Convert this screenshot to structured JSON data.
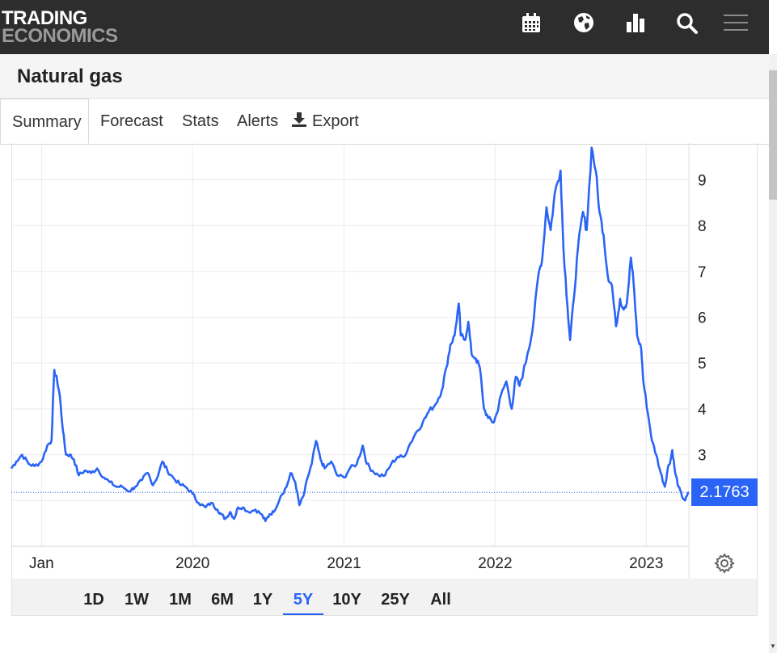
{
  "header": {
    "logo_line1": "TRADING",
    "logo_line2": "ECONOMICS",
    "icons": [
      "calendar-icon",
      "globe-icon",
      "bar-chart-icon",
      "search-icon",
      "menu-icon"
    ]
  },
  "page": {
    "title": "Natural gas"
  },
  "tabs": [
    {
      "label": "Summary",
      "active": true
    },
    {
      "label": "Forecast"
    },
    {
      "label": "Stats"
    },
    {
      "label": "Alerts"
    },
    {
      "label": "Export",
      "icon": "download-icon"
    }
  ],
  "ranges": [
    {
      "label": "1D"
    },
    {
      "label": "1W"
    },
    {
      "label": "1M"
    },
    {
      "label": "6M"
    },
    {
      "label": "1Y"
    },
    {
      "label": "5Y",
      "active": true
    },
    {
      "label": "10Y"
    },
    {
      "label": "25Y"
    },
    {
      "label": "All"
    }
  ],
  "colors": {
    "line": "#2a64f6",
    "header_bg": "#2d2d2d",
    "accent": "#2a64f6"
  },
  "chart_data": {
    "type": "line",
    "current_value": "2.1763",
    "x_tick_labels": [
      "Jan",
      "2020",
      "2021",
      "2022",
      "2023"
    ],
    "y_ticks": [
      3,
      4,
      5,
      6,
      7,
      8,
      9
    ],
    "ylim": [
      1.0,
      9.8
    ],
    "xlim": [
      "2018-10-20",
      "2023-04-14"
    ],
    "grid": true,
    "series": [
      {
        "values": [
          [
            "2018-10-20",
            2.7
          ],
          [
            "2018-11-01",
            2.85
          ],
          [
            "2018-11-15",
            3.0
          ],
          [
            "2018-12-01",
            2.8
          ],
          [
            "2018-12-15",
            2.75
          ],
          [
            "2019-01-01",
            2.85
          ],
          [
            "2019-01-15",
            3.2
          ],
          [
            "2019-01-25",
            3.3
          ],
          [
            "2019-02-01",
            4.85
          ],
          [
            "2019-02-08",
            4.6
          ],
          [
            "2019-02-14",
            4.3
          ],
          [
            "2019-02-22",
            3.5
          ],
          [
            "2019-03-01",
            3.0
          ],
          [
            "2019-03-10",
            3.0
          ],
          [
            "2019-03-20",
            2.9
          ],
          [
            "2019-04-01",
            2.55
          ],
          [
            "2019-04-15",
            2.65
          ],
          [
            "2019-05-01",
            2.6
          ],
          [
            "2019-05-15",
            2.7
          ],
          [
            "2019-06-01",
            2.5
          ],
          [
            "2019-06-15",
            2.4
          ],
          [
            "2019-07-01",
            2.3
          ],
          [
            "2019-07-15",
            2.3
          ],
          [
            "2019-08-01",
            2.2
          ],
          [
            "2019-08-15",
            2.3
          ],
          [
            "2019-09-01",
            2.45
          ],
          [
            "2019-09-15",
            2.6
          ],
          [
            "2019-09-25",
            2.35
          ],
          [
            "2019-10-05",
            2.45
          ],
          [
            "2019-10-20",
            2.85
          ],
          [
            "2019-11-01",
            2.65
          ],
          [
            "2019-11-15",
            2.5
          ],
          [
            "2019-12-01",
            2.35
          ],
          [
            "2019-12-15",
            2.3
          ],
          [
            "2020-01-01",
            2.15
          ],
          [
            "2020-01-15",
            1.95
          ],
          [
            "2020-02-01",
            1.85
          ],
          [
            "2020-02-15",
            1.95
          ],
          [
            "2020-03-01",
            1.8
          ],
          [
            "2020-03-10",
            1.7
          ],
          [
            "2020-03-20",
            1.6
          ],
          [
            "2020-04-01",
            1.75
          ],
          [
            "2020-04-10",
            1.6
          ],
          [
            "2020-04-20",
            1.85
          ],
          [
            "2020-05-01",
            1.85
          ],
          [
            "2020-05-15",
            1.75
          ],
          [
            "2020-06-01",
            1.8
          ],
          [
            "2020-06-15",
            1.7
          ],
          [
            "2020-06-25",
            1.55
          ],
          [
            "2020-07-05",
            1.7
          ],
          [
            "2020-07-15",
            1.75
          ],
          [
            "2020-08-01",
            2.1
          ],
          [
            "2020-08-15",
            2.3
          ],
          [
            "2020-08-25",
            2.6
          ],
          [
            "2020-09-05",
            2.4
          ],
          [
            "2020-09-15",
            1.9
          ],
          [
            "2020-09-25",
            2.1
          ],
          [
            "2020-10-05",
            2.5
          ],
          [
            "2020-10-15",
            2.8
          ],
          [
            "2020-10-25",
            3.3
          ],
          [
            "2020-11-05",
            2.9
          ],
          [
            "2020-11-15",
            2.7
          ],
          [
            "2020-12-01",
            2.85
          ],
          [
            "2020-12-15",
            2.55
          ],
          [
            "2021-01-01",
            2.5
          ],
          [
            "2021-01-15",
            2.7
          ],
          [
            "2021-02-01",
            2.8
          ],
          [
            "2021-02-15",
            3.2
          ],
          [
            "2021-02-25",
            2.8
          ],
          [
            "2021-03-10",
            2.65
          ],
          [
            "2021-03-25",
            2.55
          ],
          [
            "2021-04-10",
            2.55
          ],
          [
            "2021-04-25",
            2.8
          ],
          [
            "2021-05-10",
            2.95
          ],
          [
            "2021-05-25",
            2.95
          ],
          [
            "2021-06-10",
            3.25
          ],
          [
            "2021-06-25",
            3.5
          ],
          [
            "2021-07-10",
            3.7
          ],
          [
            "2021-07-25",
            3.95
          ],
          [
            "2021-08-10",
            4.1
          ],
          [
            "2021-08-25",
            4.4
          ],
          [
            "2021-09-05",
            4.9
          ],
          [
            "2021-09-15",
            5.4
          ],
          [
            "2021-09-25",
            5.6
          ],
          [
            "2021-10-05",
            6.3
          ],
          [
            "2021-10-10",
            5.6
          ],
          [
            "2021-10-20",
            5.5
          ],
          [
            "2021-10-28",
            5.9
          ],
          [
            "2021-11-05",
            5.2
          ],
          [
            "2021-11-15",
            5.1
          ],
          [
            "2021-11-25",
            4.9
          ],
          [
            "2021-12-05",
            4.0
          ],
          [
            "2021-12-15",
            3.8
          ],
          [
            "2021-12-28",
            3.7
          ],
          [
            "2022-01-05",
            3.9
          ],
          [
            "2022-01-15",
            4.3
          ],
          [
            "2022-01-28",
            4.6
          ],
          [
            "2022-02-10",
            4.0
          ],
          [
            "2022-02-20",
            4.7
          ],
          [
            "2022-03-01",
            4.5
          ],
          [
            "2022-03-10",
            4.8
          ],
          [
            "2022-03-20",
            5.2
          ],
          [
            "2022-04-01",
            5.7
          ],
          [
            "2022-04-15",
            6.9
          ],
          [
            "2022-04-25",
            7.3
          ],
          [
            "2022-05-05",
            8.4
          ],
          [
            "2022-05-15",
            7.9
          ],
          [
            "2022-05-25",
            8.7
          ],
          [
            "2022-06-08",
            9.2
          ],
          [
            "2022-06-15",
            7.5
          ],
          [
            "2022-06-25",
            6.2
          ],
          [
            "2022-07-01",
            5.5
          ],
          [
            "2022-07-10",
            6.4
          ],
          [
            "2022-07-20",
            7.5
          ],
          [
            "2022-08-01",
            8.3
          ],
          [
            "2022-08-10",
            7.9
          ],
          [
            "2022-08-22",
            9.7
          ],
          [
            "2022-09-01",
            9.2
          ],
          [
            "2022-09-10",
            8.3
          ],
          [
            "2022-09-20",
            7.8
          ],
          [
            "2022-09-30",
            6.9
          ],
          [
            "2022-10-10",
            6.7
          ],
          [
            "2022-10-20",
            5.8
          ],
          [
            "2022-10-30",
            6.4
          ],
          [
            "2022-11-05",
            6.2
          ],
          [
            "2022-11-15",
            6.3
          ],
          [
            "2022-11-25",
            7.3
          ],
          [
            "2022-12-01",
            6.8
          ],
          [
            "2022-12-10",
            5.6
          ],
          [
            "2022-12-20",
            5.3
          ],
          [
            "2022-12-25",
            4.6
          ],
          [
            "2023-01-05",
            3.9
          ],
          [
            "2023-01-15",
            3.3
          ],
          [
            "2023-01-25",
            3.0
          ],
          [
            "2023-02-05",
            2.6
          ],
          [
            "2023-02-15",
            2.3
          ],
          [
            "2023-02-22",
            2.7
          ],
          [
            "2023-03-01",
            2.9
          ],
          [
            "2023-03-05",
            3.1
          ],
          [
            "2023-03-12",
            2.6
          ],
          [
            "2023-03-20",
            2.3
          ],
          [
            "2023-03-28",
            2.1
          ],
          [
            "2023-04-05",
            2.0
          ],
          [
            "2023-04-14",
            2.1763
          ]
        ]
      }
    ]
  }
}
